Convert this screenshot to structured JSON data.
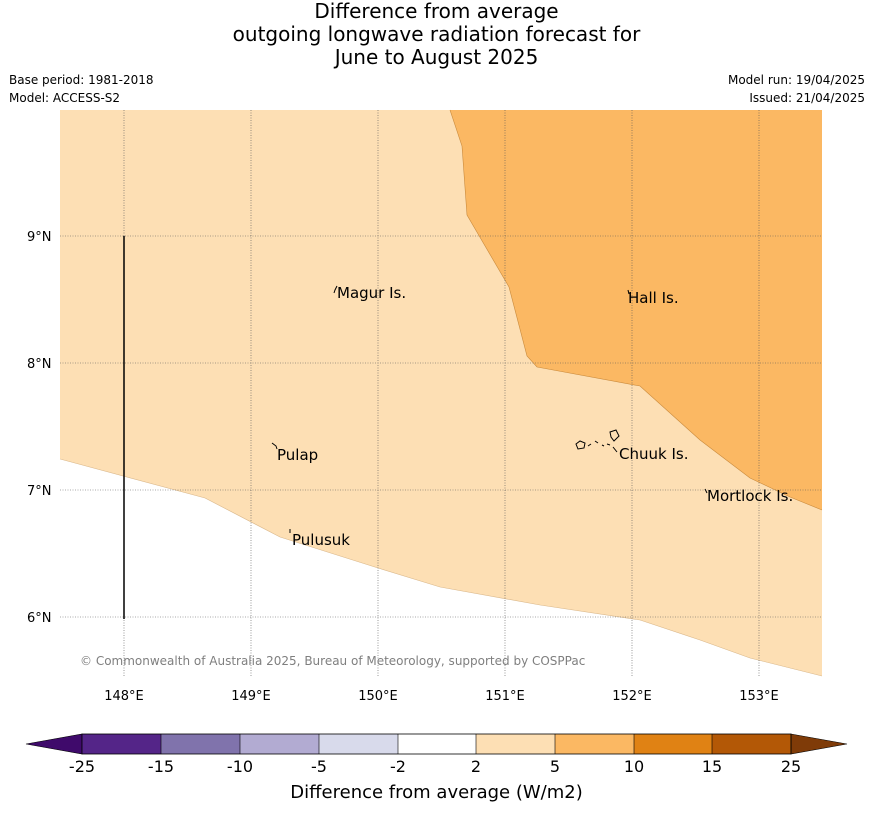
{
  "header": {
    "title_lines": [
      "Difference from average",
      "outgoing longwave radiation forecast for",
      "June to August 2025"
    ],
    "base_period": "Base period: 1981-2018",
    "model": "Model: ACCESS-S2",
    "model_run": "Model run: 19/04/2025",
    "issued": "Issued: 21/04/2025"
  },
  "map": {
    "lon_ticks": [
      "148°E",
      "149°E",
      "150°E",
      "151°E",
      "152°E",
      "153°E"
    ],
    "lat_ticks": [
      "9°N",
      "8°N",
      "7°N",
      "6°N"
    ],
    "places": [
      {
        "name": "Magur Is.",
        "lon": 149.68,
        "lat": 8.55
      },
      {
        "name": "Hall Is.",
        "lon": 151.97,
        "lat": 8.51
      },
      {
        "name": "Pulap",
        "lon": 149.2,
        "lat": 7.27
      },
      {
        "name": "Chuuk Is.",
        "lon": 151.89,
        "lat": 7.28
      },
      {
        "name": "Mortlock Is.",
        "lon": 152.6,
        "lat": 6.95
      },
      {
        "name": "Pulusuk",
        "lon": 149.31,
        "lat": 6.6
      }
    ],
    "copyright": "© Commonwealth of Australia 2025, Bureau of Meteorology, supported by COSPPac",
    "colors": {
      "band_2_5": "#fddfb4",
      "band_5_10": "#fbb863",
      "below_2": "#ffffff"
    }
  },
  "colorbar": {
    "label": "Difference from average (W/m2)",
    "ticks": [
      "-25",
      "-15",
      "-10",
      "-5",
      "-2",
      "2",
      "5",
      "10",
      "15",
      "25"
    ],
    "colors": [
      "#3f0a6b",
      "#542588",
      "#8073ac",
      "#b2abd2",
      "#d8daeb",
      "#ffffff",
      "#fddfb4",
      "#fbb863",
      "#e08214",
      "#b35806",
      "#7f3b08"
    ]
  }
}
